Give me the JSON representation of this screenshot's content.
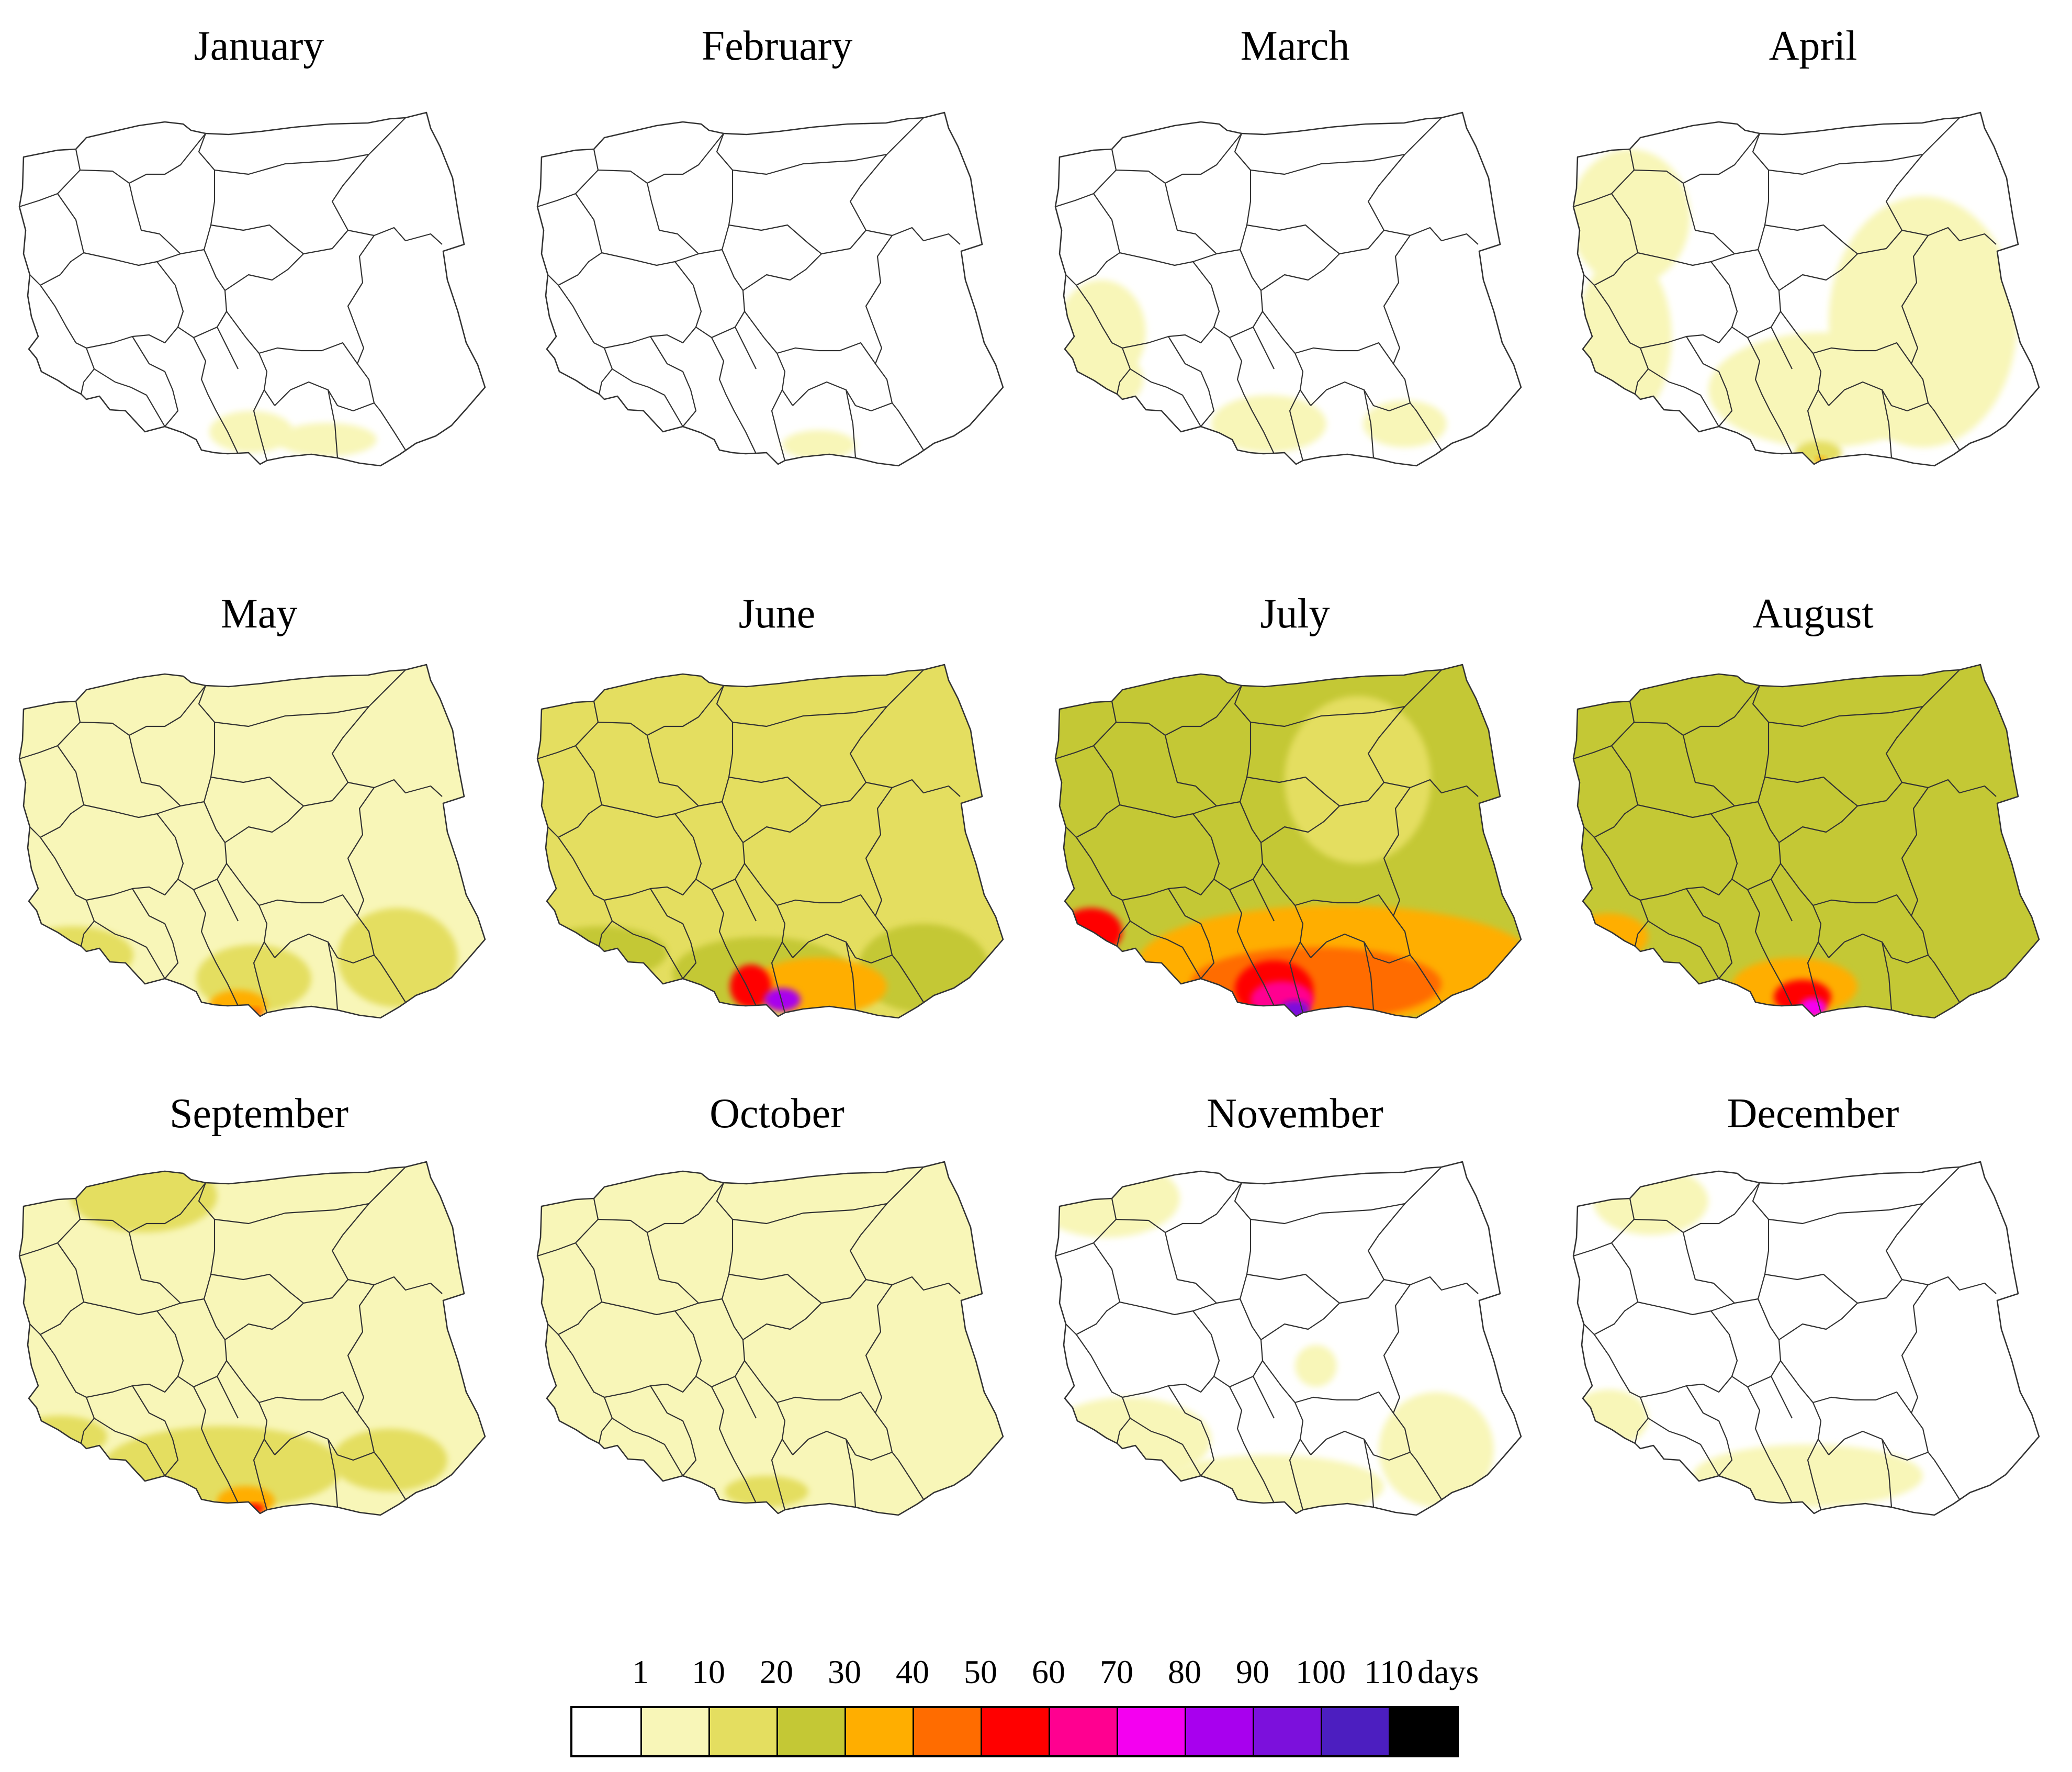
{
  "figure": {
    "months": [
      {
        "name": "January",
        "zones": [
          [
            "jan-sw",
            1
          ],
          [
            "jan-south",
            1
          ],
          [
            "jan-se",
            1
          ]
        ]
      },
      {
        "name": "February",
        "zones": [
          [
            "feb-sw",
            1
          ],
          [
            "feb-south",
            1
          ]
        ]
      },
      {
        "name": "March",
        "zones": [
          [
            "mar-w",
            1
          ],
          [
            "mar-sw",
            1
          ],
          [
            "mar-south",
            1
          ],
          [
            "mar-se",
            1
          ]
        ]
      },
      {
        "name": "April",
        "zones": [
          [
            "apr-nw",
            1
          ],
          [
            "apr-w",
            1
          ],
          [
            "apr-e",
            1
          ],
          [
            "apr-south",
            1
          ],
          [
            "apr-tatra",
            2
          ],
          [
            "apr-peak",
            4
          ]
        ]
      },
      {
        "name": "May",
        "zones": [
          [
            "all",
            1
          ],
          [
            "may-sw",
            2
          ],
          [
            "may-south",
            2
          ],
          [
            "may-se",
            2
          ],
          [
            "may-tatra",
            4
          ],
          [
            "may-peak",
            5
          ]
        ]
      },
      {
        "name": "June",
        "zones": [
          [
            "all",
            2
          ],
          [
            "jun-sw",
            3
          ],
          [
            "jun-south",
            3
          ],
          [
            "jun-se",
            3
          ],
          [
            "jun-s40",
            4
          ],
          [
            "jun-s60",
            6
          ],
          [
            "jun-peak",
            9
          ]
        ]
      },
      {
        "name": "July",
        "zones": [
          [
            "all",
            3
          ],
          [
            "jul-ne",
            2
          ],
          [
            "jul-s40",
            4
          ],
          [
            "jul-s50",
            5
          ],
          [
            "jul-sw60",
            6
          ],
          [
            "jul-s60",
            6
          ],
          [
            "jul-s70",
            7
          ],
          [
            "jul-peak",
            10
          ]
        ]
      },
      {
        "name": "August",
        "zones": [
          [
            "all",
            3
          ],
          [
            "aug-sw",
            4
          ],
          [
            "aug-sw50",
            5
          ],
          [
            "aug-s40",
            4
          ],
          [
            "aug-s60",
            6
          ],
          [
            "aug-peak",
            8
          ]
        ]
      },
      {
        "name": "September",
        "zones": [
          [
            "all",
            1
          ],
          [
            "sep-n",
            2
          ],
          [
            "sep-sw",
            2
          ],
          [
            "sep-south",
            2
          ],
          [
            "sep-se",
            2
          ],
          [
            "sep-tatra",
            4
          ],
          [
            "sep-peak",
            6
          ]
        ]
      },
      {
        "name": "October",
        "zones": [
          [
            "all",
            1
          ],
          [
            "oct-south",
            2
          ]
        ]
      },
      {
        "name": "November",
        "zones": [
          [
            "nov-nw",
            1
          ],
          [
            "nov-sw",
            1
          ],
          [
            "nov-south",
            1
          ],
          [
            "nov-se",
            1
          ],
          [
            "nov-c",
            1
          ]
        ]
      },
      {
        "name": "December",
        "zones": [
          [
            "dec-nw",
            1
          ],
          [
            "dec-sw",
            1
          ],
          [
            "dec-south",
            1
          ]
        ]
      }
    ]
  },
  "legend": {
    "labels": [
      "1",
      "10",
      "20",
      "30",
      "40",
      "50",
      "60",
      "70",
      "80",
      "90",
      "100",
      "110"
    ],
    "unit": "days",
    "colors": [
      "#ffffff",
      "#f8f6b8",
      "#e4de60",
      "#c4c835",
      "#ffae00",
      "#ff6c00",
      "#ff0000",
      "#ff0090",
      "#f400f0",
      "#a800ee",
      "#7c10dc",
      "#4c1ec0",
      "#000000"
    ]
  },
  "colors": {
    "border": "#333333",
    "background": "#ffffff"
  }
}
